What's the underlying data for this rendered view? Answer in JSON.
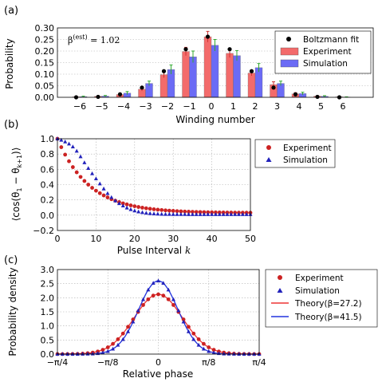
{
  "chart_data": [
    {
      "panel": "(a)",
      "type": "bar",
      "xlabel": "Winding number",
      "ylabel": "Probability",
      "annotation": "β^(est) = 1.02",
      "ylim": [
        0,
        0.3
      ],
      "yticks": [
        "0.00",
        "0.05",
        "0.10",
        "0.15",
        "0.20",
        "0.25",
        "0.30"
      ],
      "categories": [
        "−6",
        "−5",
        "−4",
        "−3",
        "−2",
        "−1",
        "0",
        "1",
        "2",
        "3",
        "4",
        "5",
        "6"
      ],
      "x": [
        -6,
        -5,
        -4,
        -3,
        -2,
        -1,
        0,
        1,
        2,
        3,
        4,
        5,
        6
      ],
      "series": [
        {
          "name": "Experiment",
          "color": "#f36b6b",
          "values": [
            0.002,
            0.004,
            0.012,
            0.035,
            0.098,
            0.198,
            0.262,
            0.19,
            0.105,
            0.055,
            0.015,
            0.005,
            0.002
          ],
          "errors": [
            0.002,
            0.002,
            0.005,
            0.008,
            0.013,
            0.018,
            0.023,
            0.018,
            0.012,
            0.012,
            0.005,
            0.002,
            0.002
          ]
        },
        {
          "name": "Simulation",
          "color": "#6b6bf5",
          "values": [
            0.003,
            0.005,
            0.018,
            0.06,
            0.12,
            0.175,
            0.225,
            0.18,
            0.128,
            0.06,
            0.016,
            0.004,
            0.001
          ],
          "errors": [
            0.002,
            0.003,
            0.007,
            0.01,
            0.02,
            0.025,
            0.025,
            0.022,
            0.018,
            0.01,
            0.006,
            0.003,
            0.001
          ]
        },
        {
          "name": "Boltzmann fit",
          "color": "#000000",
          "values": [
            0.0,
            0.002,
            0.013,
            0.042,
            0.113,
            0.208,
            0.262,
            0.208,
            0.113,
            0.042,
            0.013,
            0.002,
            0.0
          ]
        }
      ],
      "legend": "top-right"
    },
    {
      "panel": "(b)",
      "type": "scatter",
      "xlabel": "Pulse Interval k",
      "ylabel": "⟨cos(θ₁ − θ_{k+1})⟩",
      "xlim": [
        0,
        50
      ],
      "ylim": [
        -0.2,
        1.0
      ],
      "xticks": [
        "0",
        "10",
        "20",
        "30",
        "40",
        "50"
      ],
      "yticks": [
        "−0.2",
        "0.0",
        "0.2",
        "0.4",
        "0.6",
        "0.8",
        "1.0"
      ],
      "series": [
        {
          "name": "Experiment",
          "color": "#cc2222",
          "marker": "circle"
        },
        {
          "name": "Simulation",
          "color": "#2222bb",
          "marker": "triangle"
        }
      ],
      "legend": "outside-right"
    },
    {
      "panel": "(c)",
      "type": "line",
      "xlabel": "Relative phase",
      "ylabel": "Probability density",
      "xlim": [
        "−π/4",
        "π/4"
      ],
      "ylim": [
        0,
        3.0
      ],
      "xticks": [
        "−π/4",
        "−π/8",
        "0",
        "π/8",
        "π/4"
      ],
      "yticks": [
        "0.0",
        "0.5",
        "1.0",
        "1.5",
        "2.0",
        "2.5",
        "3.0"
      ],
      "series": [
        {
          "name": "Experiment",
          "color": "#cc2222",
          "marker": "circle",
          "peak": 2.12
        },
        {
          "name": "Simulation",
          "color": "#2222bb",
          "marker": "triangle",
          "peak": 2.6
        },
        {
          "name": "Theory(β=27.2)",
          "color": "#ee3333",
          "line": true,
          "beta": 27.2
        },
        {
          "name": "Theory(β=41.5)",
          "color": "#2233dd",
          "line": true,
          "beta": 41.5
        }
      ],
      "legend": "outside-right"
    }
  ]
}
